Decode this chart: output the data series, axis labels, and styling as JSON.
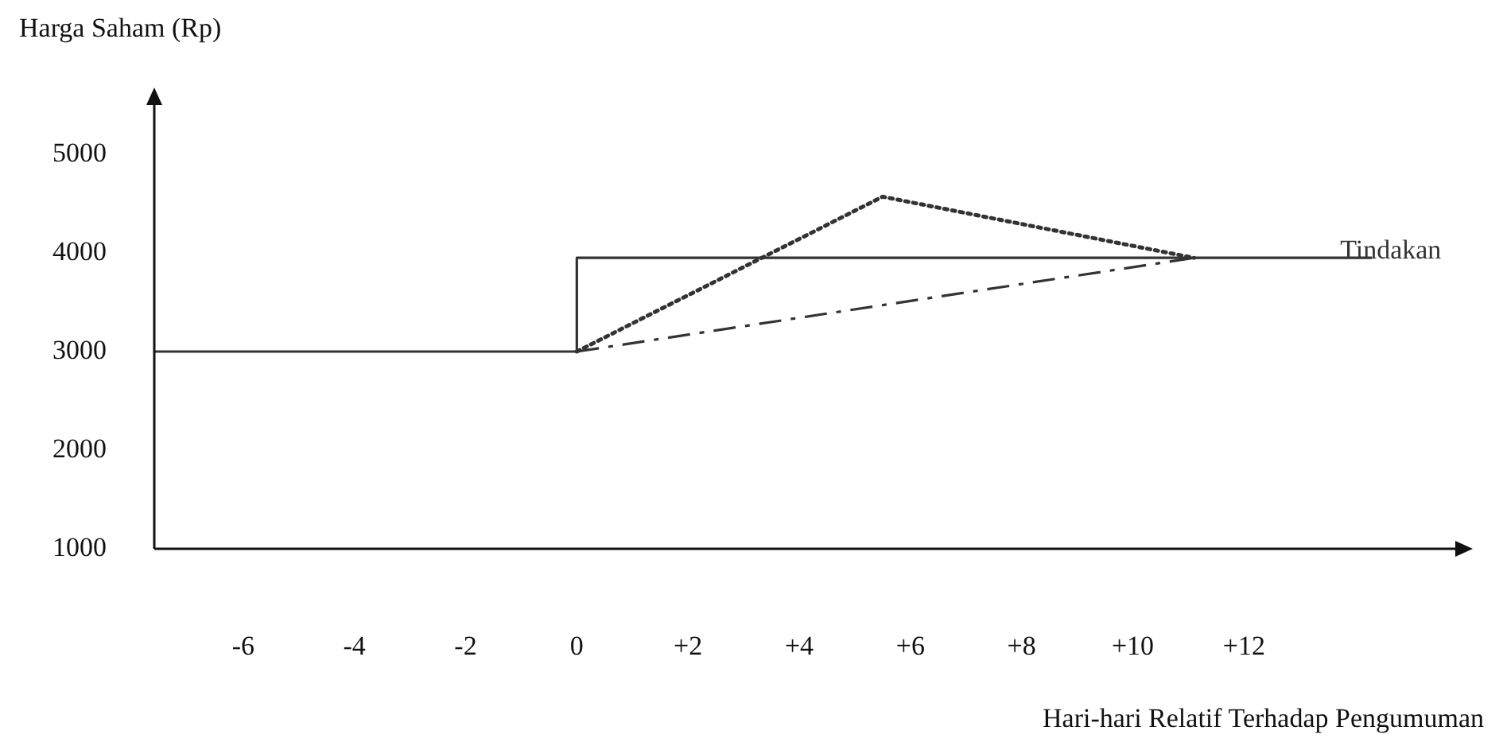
{
  "chart_data": {
    "type": "line",
    "xlabel": "Hari-hari Relatif Terhadap Pengumuman",
    "ylabel": "Harga Saham (Rp)",
    "xlim": [
      -7.6,
      15.8
    ],
    "ylim": [
      1000,
      5500
    ],
    "xticks": [
      -6,
      -4,
      -2,
      0,
      {
        "value": 2,
        "label": "+2"
      },
      {
        "value": 4,
        "label": "+4"
      },
      {
        "value": 6,
        "label": "+6"
      },
      {
        "value": 8,
        "label": "+8"
      },
      {
        "value": 10,
        "label": "+10"
      },
      {
        "value": 12,
        "label": "+12"
      }
    ],
    "yticks": [
      1000,
      2000,
      3000,
      4000,
      5000
    ],
    "grid": false,
    "legend": false,
    "marker": "none",
    "series": [
      {
        "name": "Tindakan",
        "color": "#333333",
        "line_style": "solid",
        "x": [
          -7.6,
          0,
          0,
          14.3
        ],
        "values": [
          3000,
          3000,
          3950,
          3950
        ]
      },
      {
        "color": "#333333",
        "line_style": "dotted",
        "x": [
          0,
          5.5,
          11.1
        ],
        "values": [
          3000,
          4570,
          3950
        ]
      },
      {
        "color": "#333333",
        "line_style": "dashed",
        "x": [
          0,
          11.1
        ],
        "values": [
          3000,
          3950
        ]
      }
    ]
  }
}
